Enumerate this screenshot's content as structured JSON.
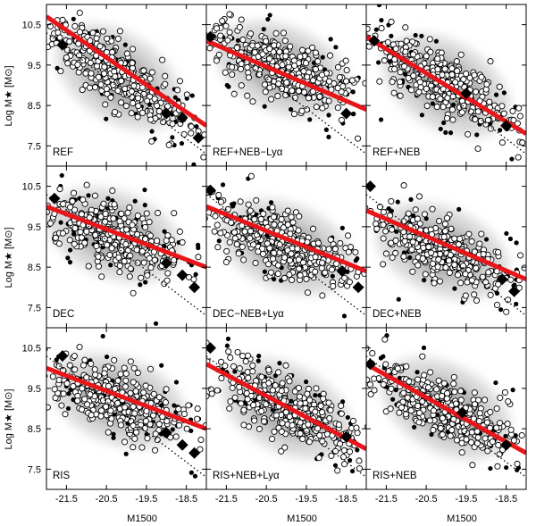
{
  "figure": {
    "ylabel": "Log M★ [M⊙]",
    "xlabel": "M1500"
  },
  "chart_data": [
    {
      "type": "scatter",
      "panel": "REF",
      "row": 0,
      "col": 0,
      "x_range": [
        -22.0,
        -18.0
      ],
      "y_range": [
        7.0,
        11.0
      ],
      "x_ticks": [
        "-21.5",
        "-20.5",
        "-19.5",
        "-18.5"
      ],
      "y_ticks": [
        "10.5",
        "9.5",
        "8.5",
        "7.5"
      ],
      "fit_line": {
        "x": [
          -22.0,
          -18.0
        ],
        "y": [
          10.7,
          8.0
        ]
      },
      "dotted_line": {
        "x": [
          -22.0,
          -18.0
        ],
        "y": [
          10.3,
          7.3
        ]
      },
      "diamonds": {
        "x": [
          -21.6,
          -19.0,
          -18.6,
          -18.2
        ],
        "y": [
          10.0,
          8.3,
          8.2,
          7.7
        ]
      },
      "cloud_center": [
        -20.2,
        9.2
      ]
    },
    {
      "type": "scatter",
      "panel": "REF+NEB−Lyα",
      "row": 0,
      "col": 1,
      "x_range": [
        -22.0,
        -18.0
      ],
      "y_range": [
        7.0,
        11.0
      ],
      "x_ticks": [
        "-21.5",
        "-20.5",
        "-19.5",
        "-18.5"
      ],
      "y_ticks": [
        "10.5",
        "9.5",
        "8.5",
        "7.5"
      ],
      "fit_line": {
        "x": [
          -22.0,
          -18.0
        ],
        "y": [
          10.1,
          8.4
        ]
      },
      "dotted_line": {
        "x": [
          -22.0,
          -18.0
        ],
        "y": [
          10.3,
          7.3
        ]
      },
      "diamonds": {
        "x": [
          -21.9,
          -18.5
        ],
        "y": [
          10.2,
          8.3
        ]
      },
      "cloud_center": [
        -20.1,
        9.4
      ]
    },
    {
      "type": "scatter",
      "panel": "REF+NEB",
      "row": 0,
      "col": 2,
      "x_range": [
        -22.0,
        -18.0
      ],
      "y_range": [
        7.0,
        11.0
      ],
      "x_ticks": [
        "-21.5",
        "-20.5",
        "-19.5",
        "-18.5"
      ],
      "y_ticks": [
        "10.5",
        "9.5",
        "8.5",
        "7.5"
      ],
      "fit_line": {
        "x": [
          -22.0,
          -18.0
        ],
        "y": [
          10.2,
          7.8
        ]
      },
      "dotted_line": {
        "x": [
          -22.0,
          -18.0
        ],
        "y": [
          10.3,
          7.3
        ]
      },
      "diamonds": {
        "x": [
          -21.8,
          -19.5,
          -18.5
        ],
        "y": [
          10.1,
          8.8,
          8.0
        ]
      },
      "cloud_center": [
        -20.0,
        9.0
      ]
    },
    {
      "type": "scatter",
      "panel": "DEC",
      "row": 1,
      "col": 0,
      "x_range": [
        -22.0,
        -18.0
      ],
      "y_range": [
        7.0,
        11.0
      ],
      "x_ticks": [
        "-21.5",
        "-20.5",
        "-19.5",
        "-18.5"
      ],
      "y_ticks": [
        "10.5",
        "9.5",
        "8.5",
        "7.5"
      ],
      "fit_line": {
        "x": [
          -22.0,
          -18.0
        ],
        "y": [
          10.0,
          8.5
        ]
      },
      "dotted_line": {
        "x": [
          -22.0,
          -18.0
        ],
        "y": [
          10.3,
          7.3
        ]
      },
      "diamonds": {
        "x": [
          -21.8,
          -19.0,
          -18.6,
          -18.3
        ],
        "y": [
          10.2,
          8.6,
          8.3,
          8.0
        ]
      },
      "cloud_center": [
        -20.3,
        9.3
      ]
    },
    {
      "type": "scatter",
      "panel": "DEC−NEB+Lyα",
      "row": 1,
      "col": 1,
      "x_range": [
        -22.0,
        -18.0
      ],
      "y_range": [
        7.0,
        11.0
      ],
      "x_ticks": [
        "-21.5",
        "-20.5",
        "-19.5",
        "-18.5"
      ],
      "y_ticks": [
        "10.5",
        "9.5",
        "8.5",
        "7.5"
      ],
      "fit_line": {
        "x": [
          -22.0,
          -18.0
        ],
        "y": [
          10.0,
          8.4
        ]
      },
      "dotted_line": {
        "x": [
          -22.0,
          -18.0
        ],
        "y": [
          10.3,
          7.3
        ]
      },
      "diamonds": {
        "x": [
          -21.9,
          -18.6,
          -18.2
        ],
        "y": [
          10.4,
          8.4,
          8.0
        ]
      },
      "cloud_center": [
        -20.0,
        9.0
      ]
    },
    {
      "type": "scatter",
      "panel": "DEC+NEB",
      "row": 1,
      "col": 2,
      "x_range": [
        -22.0,
        -18.0
      ],
      "y_range": [
        7.0,
        11.0
      ],
      "x_ticks": [
        "-21.5",
        "-20.5",
        "-19.5",
        "-18.5"
      ],
      "y_ticks": [
        "10.5",
        "9.5",
        "8.5",
        "7.5"
      ],
      "fit_line": {
        "x": [
          -22.0,
          -18.0
        ],
        "y": [
          9.9,
          8.2
        ]
      },
      "dotted_line": {
        "x": [
          -22.0,
          -18.0
        ],
        "y": [
          10.3,
          7.3
        ]
      },
      "diamonds": {
        "x": [
          -21.9,
          -18.6,
          -18.3
        ],
        "y": [
          10.5,
          8.2,
          7.9
        ]
      },
      "cloud_center": [
        -20.1,
        8.9
      ]
    },
    {
      "type": "scatter",
      "panel": "RIS",
      "row": 2,
      "col": 0,
      "x_range": [
        -22.0,
        -18.0
      ],
      "y_range": [
        7.0,
        11.0
      ],
      "x_ticks": [
        "-21.5",
        "-20.5",
        "-19.5",
        "-18.5"
      ],
      "y_ticks": [
        "10.5",
        "9.5",
        "8.5",
        "7.5"
      ],
      "fit_line": {
        "x": [
          -22.0,
          -18.0
        ],
        "y": [
          10.0,
          8.5
        ]
      },
      "dotted_line": {
        "x": [
          -22.0,
          -18.0
        ],
        "y": [
          10.3,
          7.3
        ]
      },
      "diamonds": {
        "x": [
          -21.6,
          -19.0,
          -18.6,
          -18.3
        ],
        "y": [
          10.3,
          8.4,
          8.1,
          7.9
        ]
      },
      "cloud_center": [
        -20.2,
        9.2
      ]
    },
    {
      "type": "scatter",
      "panel": "RIS+NEB+Lyα",
      "row": 2,
      "col": 1,
      "x_range": [
        -22.0,
        -18.0
      ],
      "y_range": [
        7.0,
        11.0
      ],
      "x_ticks": [
        "-21.5",
        "-20.5",
        "-19.5",
        "-18.5"
      ],
      "y_ticks": [
        "10.5",
        "9.5",
        "8.5",
        "7.5"
      ],
      "fit_line": {
        "x": [
          -22.0,
          -18.0
        ],
        "y": [
          10.1,
          8.0
        ]
      },
      "dotted_line": {
        "x": [
          -22.0,
          -18.0
        ],
        "y": [
          10.3,
          7.3
        ]
      },
      "diamonds": {
        "x": [
          -21.9,
          -18.5
        ],
        "y": [
          10.5,
          8.3
        ]
      },
      "cloud_center": [
        -20.0,
        9.0
      ]
    },
    {
      "type": "scatter",
      "panel": "RIS+NEB",
      "row": 2,
      "col": 2,
      "x_range": [
        -22.0,
        -18.0
      ],
      "y_range": [
        7.0,
        11.0
      ],
      "x_ticks": [
        "-21.5",
        "-20.5",
        "-19.5",
        "-18.5"
      ],
      "y_ticks": [
        "10.5",
        "9.5",
        "8.5",
        "7.5"
      ],
      "fit_line": {
        "x": [
          -22.0,
          -18.0
        ],
        "y": [
          10.1,
          7.9
        ]
      },
      "dotted_line": {
        "x": [
          -22.0,
          -18.0
        ],
        "y": [
          10.3,
          7.3
        ]
      },
      "diamonds": {
        "x": [
          -21.9,
          -19.6,
          -18.5
        ],
        "y": [
          10.1,
          8.9,
          8.1
        ]
      },
      "cloud_center": [
        -20.0,
        9.0
      ]
    }
  ],
  "colors": {
    "fit_line": "#e8161b",
    "points": "#000000",
    "cloud": "#bfbfbf"
  }
}
